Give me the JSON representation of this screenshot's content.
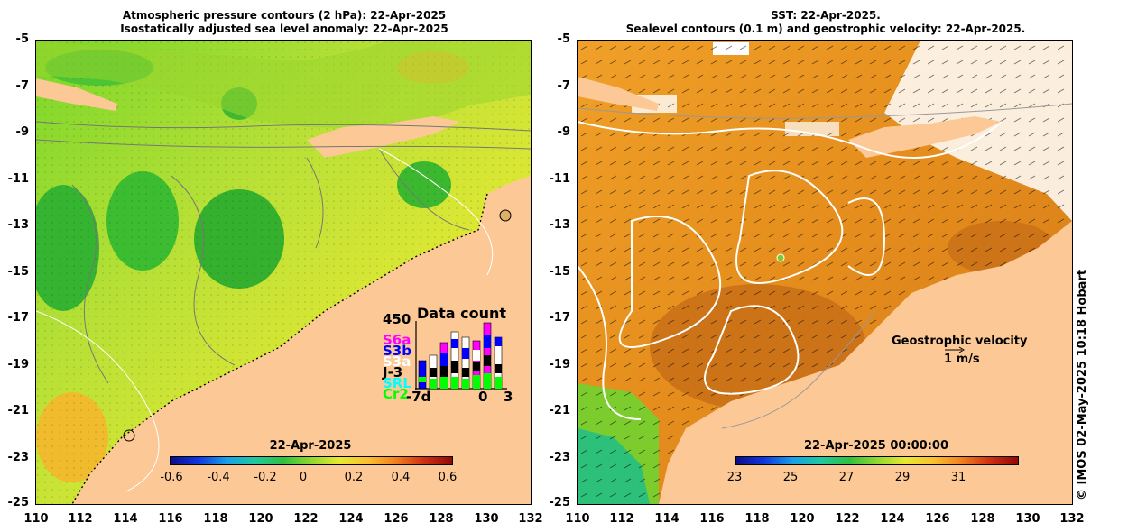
{
  "left_map": {
    "title_line1": "Atmospheric pressure contours (2 hPa): 22-Apr-2025",
    "title_line2": "Isostatically adjusted sea level anomaly: 22-Apr-2025",
    "y_ticks": [
      "-5",
      "-7",
      "-9",
      "-11",
      "-13",
      "-15",
      "-17",
      "-19",
      "-21",
      "-23",
      "-25"
    ],
    "x_ticks": [
      "110",
      "112",
      "114",
      "116",
      "118",
      "120",
      "122",
      "124",
      "126",
      "128",
      "130",
      "132"
    ],
    "colorbar": {
      "date": "22-Apr-2025",
      "ticks": [
        "-0.6",
        "-0.4",
        "-0.2",
        "0",
        "0.2",
        "0.4",
        "0.6"
      ],
      "range": [
        -0.6,
        0.6
      ]
    },
    "data_count": {
      "title": "Data count",
      "y_max_label": "450",
      "missions": [
        "S6a",
        "S3b",
        "S3a",
        "J-3",
        "SRL",
        "Cr2"
      ],
      "mission_colors": [
        "#ff00ff",
        "#0000ff",
        "#ffffff",
        "#000000",
        "#00ffff",
        "#00ff00"
      ],
      "x_labels": [
        "-7d",
        "0",
        "3"
      ]
    }
  },
  "right_map": {
    "title_line1": "SST: 22-Apr-2025.",
    "title_line2": "Sealevel contours (0.1 m) and geostrophic velocity: 22-Apr-2025.",
    "y_ticks": [
      "-5",
      "-7",
      "-9",
      "-11",
      "-13",
      "-15",
      "-17",
      "-19",
      "-21",
      "-23",
      "-25"
    ],
    "x_ticks": [
      "110",
      "112",
      "114",
      "116",
      "118",
      "120",
      "122",
      "124",
      "126",
      "128",
      "130",
      "132"
    ],
    "colorbar": {
      "date": "22-Apr-2025 00:00:00",
      "ticks": [
        "23",
        "25",
        "27",
        "29",
        "31"
      ],
      "range": [
        22,
        32
      ]
    },
    "velocity_legend": {
      "label": "Geostrophic velocity",
      "scale": "1 m/s"
    }
  },
  "credit": "© IMOS 02-May-2025 10:18 Hobart",
  "colors": {
    "land": "#fcc896",
    "sla_green": "#3ccc2c",
    "sla_yellow": "#e6e832",
    "sst_orange": "#e8961e",
    "sst_dark": "#c06a18",
    "cloud": "#ffffff"
  }
}
